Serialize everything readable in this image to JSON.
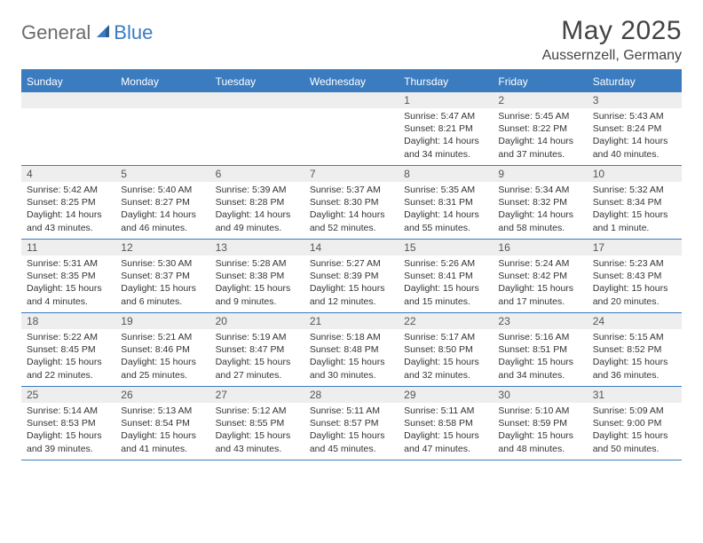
{
  "logo": {
    "general": "General",
    "blue": "Blue"
  },
  "title": "May 2025",
  "location": "Aussernzell, Germany",
  "weekdays": [
    "Sunday",
    "Monday",
    "Tuesday",
    "Wednesday",
    "Thursday",
    "Friday",
    "Saturday"
  ],
  "colors": {
    "brand": "#3b7bbf",
    "logo_gray": "#6b6b6b",
    "daynum_bg": "#eeeeee",
    "text": "#333333"
  },
  "weeks": [
    [
      {
        "n": "",
        "sunrise": "",
        "sunset": "",
        "daylight": ""
      },
      {
        "n": "",
        "sunrise": "",
        "sunset": "",
        "daylight": ""
      },
      {
        "n": "",
        "sunrise": "",
        "sunset": "",
        "daylight": ""
      },
      {
        "n": "",
        "sunrise": "",
        "sunset": "",
        "daylight": ""
      },
      {
        "n": "1",
        "sunrise": "Sunrise: 5:47 AM",
        "sunset": "Sunset: 8:21 PM",
        "daylight": "Daylight: 14 hours and 34 minutes."
      },
      {
        "n": "2",
        "sunrise": "Sunrise: 5:45 AM",
        "sunset": "Sunset: 8:22 PM",
        "daylight": "Daylight: 14 hours and 37 minutes."
      },
      {
        "n": "3",
        "sunrise": "Sunrise: 5:43 AM",
        "sunset": "Sunset: 8:24 PM",
        "daylight": "Daylight: 14 hours and 40 minutes."
      }
    ],
    [
      {
        "n": "4",
        "sunrise": "Sunrise: 5:42 AM",
        "sunset": "Sunset: 8:25 PM",
        "daylight": "Daylight: 14 hours and 43 minutes."
      },
      {
        "n": "5",
        "sunrise": "Sunrise: 5:40 AM",
        "sunset": "Sunset: 8:27 PM",
        "daylight": "Daylight: 14 hours and 46 minutes."
      },
      {
        "n": "6",
        "sunrise": "Sunrise: 5:39 AM",
        "sunset": "Sunset: 8:28 PM",
        "daylight": "Daylight: 14 hours and 49 minutes."
      },
      {
        "n": "7",
        "sunrise": "Sunrise: 5:37 AM",
        "sunset": "Sunset: 8:30 PM",
        "daylight": "Daylight: 14 hours and 52 minutes."
      },
      {
        "n": "8",
        "sunrise": "Sunrise: 5:35 AM",
        "sunset": "Sunset: 8:31 PM",
        "daylight": "Daylight: 14 hours and 55 minutes."
      },
      {
        "n": "9",
        "sunrise": "Sunrise: 5:34 AM",
        "sunset": "Sunset: 8:32 PM",
        "daylight": "Daylight: 14 hours and 58 minutes."
      },
      {
        "n": "10",
        "sunrise": "Sunrise: 5:32 AM",
        "sunset": "Sunset: 8:34 PM",
        "daylight": "Daylight: 15 hours and 1 minute."
      }
    ],
    [
      {
        "n": "11",
        "sunrise": "Sunrise: 5:31 AM",
        "sunset": "Sunset: 8:35 PM",
        "daylight": "Daylight: 15 hours and 4 minutes."
      },
      {
        "n": "12",
        "sunrise": "Sunrise: 5:30 AM",
        "sunset": "Sunset: 8:37 PM",
        "daylight": "Daylight: 15 hours and 6 minutes."
      },
      {
        "n": "13",
        "sunrise": "Sunrise: 5:28 AM",
        "sunset": "Sunset: 8:38 PM",
        "daylight": "Daylight: 15 hours and 9 minutes."
      },
      {
        "n": "14",
        "sunrise": "Sunrise: 5:27 AM",
        "sunset": "Sunset: 8:39 PM",
        "daylight": "Daylight: 15 hours and 12 minutes."
      },
      {
        "n": "15",
        "sunrise": "Sunrise: 5:26 AM",
        "sunset": "Sunset: 8:41 PM",
        "daylight": "Daylight: 15 hours and 15 minutes."
      },
      {
        "n": "16",
        "sunrise": "Sunrise: 5:24 AM",
        "sunset": "Sunset: 8:42 PM",
        "daylight": "Daylight: 15 hours and 17 minutes."
      },
      {
        "n": "17",
        "sunrise": "Sunrise: 5:23 AM",
        "sunset": "Sunset: 8:43 PM",
        "daylight": "Daylight: 15 hours and 20 minutes."
      }
    ],
    [
      {
        "n": "18",
        "sunrise": "Sunrise: 5:22 AM",
        "sunset": "Sunset: 8:45 PM",
        "daylight": "Daylight: 15 hours and 22 minutes."
      },
      {
        "n": "19",
        "sunrise": "Sunrise: 5:21 AM",
        "sunset": "Sunset: 8:46 PM",
        "daylight": "Daylight: 15 hours and 25 minutes."
      },
      {
        "n": "20",
        "sunrise": "Sunrise: 5:19 AM",
        "sunset": "Sunset: 8:47 PM",
        "daylight": "Daylight: 15 hours and 27 minutes."
      },
      {
        "n": "21",
        "sunrise": "Sunrise: 5:18 AM",
        "sunset": "Sunset: 8:48 PM",
        "daylight": "Daylight: 15 hours and 30 minutes."
      },
      {
        "n": "22",
        "sunrise": "Sunrise: 5:17 AM",
        "sunset": "Sunset: 8:50 PM",
        "daylight": "Daylight: 15 hours and 32 minutes."
      },
      {
        "n": "23",
        "sunrise": "Sunrise: 5:16 AM",
        "sunset": "Sunset: 8:51 PM",
        "daylight": "Daylight: 15 hours and 34 minutes."
      },
      {
        "n": "24",
        "sunrise": "Sunrise: 5:15 AM",
        "sunset": "Sunset: 8:52 PM",
        "daylight": "Daylight: 15 hours and 36 minutes."
      }
    ],
    [
      {
        "n": "25",
        "sunrise": "Sunrise: 5:14 AM",
        "sunset": "Sunset: 8:53 PM",
        "daylight": "Daylight: 15 hours and 39 minutes."
      },
      {
        "n": "26",
        "sunrise": "Sunrise: 5:13 AM",
        "sunset": "Sunset: 8:54 PM",
        "daylight": "Daylight: 15 hours and 41 minutes."
      },
      {
        "n": "27",
        "sunrise": "Sunrise: 5:12 AM",
        "sunset": "Sunset: 8:55 PM",
        "daylight": "Daylight: 15 hours and 43 minutes."
      },
      {
        "n": "28",
        "sunrise": "Sunrise: 5:11 AM",
        "sunset": "Sunset: 8:57 PM",
        "daylight": "Daylight: 15 hours and 45 minutes."
      },
      {
        "n": "29",
        "sunrise": "Sunrise: 5:11 AM",
        "sunset": "Sunset: 8:58 PM",
        "daylight": "Daylight: 15 hours and 47 minutes."
      },
      {
        "n": "30",
        "sunrise": "Sunrise: 5:10 AM",
        "sunset": "Sunset: 8:59 PM",
        "daylight": "Daylight: 15 hours and 48 minutes."
      },
      {
        "n": "31",
        "sunrise": "Sunrise: 5:09 AM",
        "sunset": "Sunset: 9:00 PM",
        "daylight": "Daylight: 15 hours and 50 minutes."
      }
    ]
  ]
}
